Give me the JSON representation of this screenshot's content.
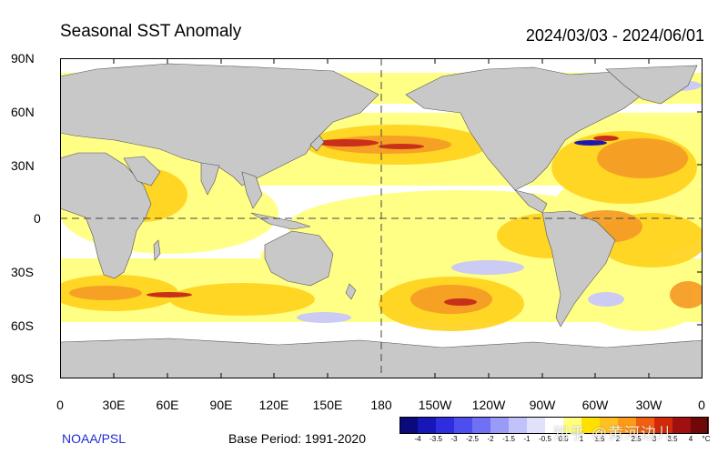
{
  "title": "Seasonal SST Anomaly",
  "date_range": "2024/03/03 - 2024/06/01",
  "source": "NOAA/PSL",
  "base_period": "Base Period: 1991-2020",
  "watermark": "知乎 @黄河边儿",
  "y_axis_labels": [
    "90N",
    "60N",
    "30N",
    "0",
    "30S",
    "60S",
    "90S"
  ],
  "x_axis_labels": [
    "0",
    "30E",
    "60E",
    "90E",
    "120E",
    "150E",
    "180",
    "150W",
    "120W",
    "90W",
    "60W",
    "30W",
    "0"
  ],
  "colorbar": {
    "tick_labels": [
      "-4",
      "-3.5",
      "-3",
      "-2.5",
      "-2",
      "-1.5",
      "-1",
      "-0.5",
      "0.5",
      "1",
      "1.5",
      "2",
      "2.5",
      "3",
      "3.5",
      "4"
    ],
    "unit": "°C",
    "colors": [
      "#0a0a7a",
      "#1717b8",
      "#2e2ee0",
      "#4d4df0",
      "#7070f5",
      "#9a9af8",
      "#c2c2fa",
      "#e1e1fc",
      "#ffffff",
      "#ffff80",
      "#ffe000",
      "#ffc020",
      "#ff9a18",
      "#f06010",
      "#d02a0a",
      "#a01010",
      "#700808"
    ]
  },
  "colors": {
    "land": "#c8c8c8",
    "ocean": "#ffffff",
    "anomaly_weak": "#ffff80",
    "anomaly_mid": "#ffd21a",
    "anomaly_strong": "#f59a25",
    "anomaly_max": "#c8301a",
    "anomaly_cold": "#c8c8fa",
    "anomaly_cold_strong": "#1a1ab0"
  }
}
